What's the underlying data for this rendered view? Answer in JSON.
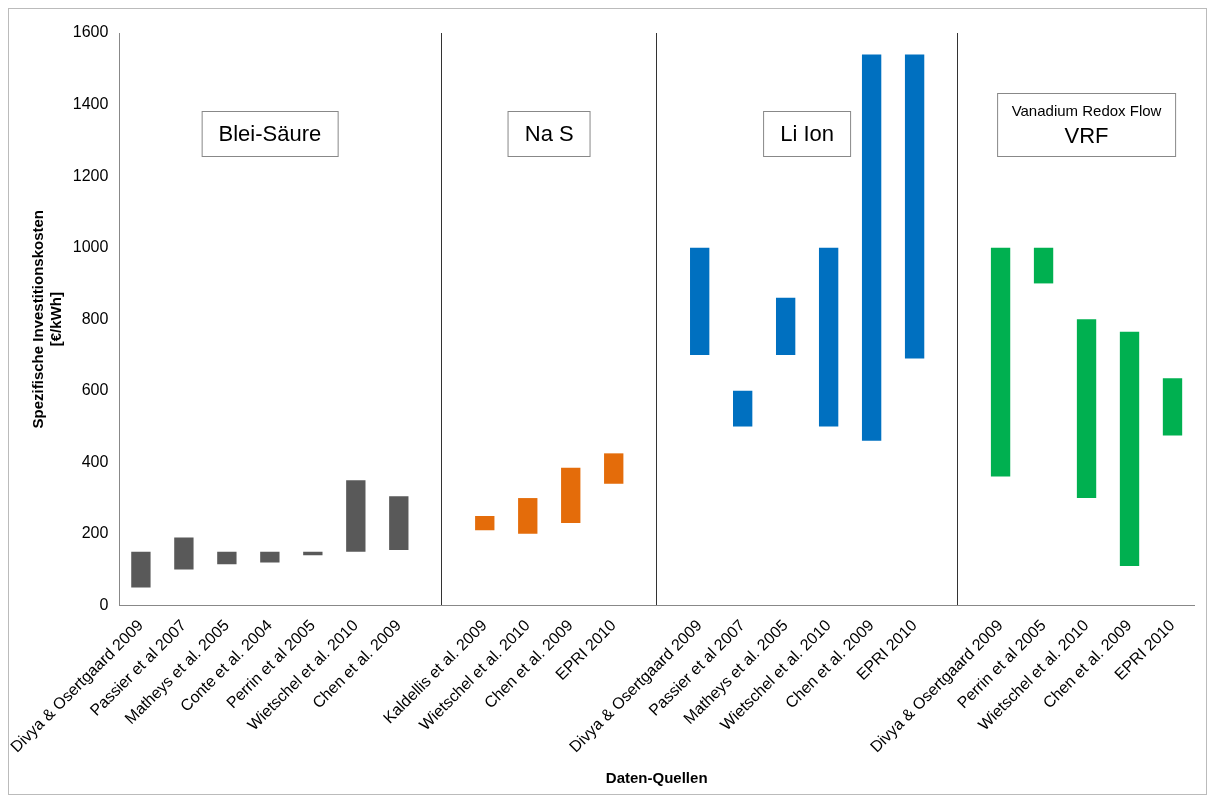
{
  "chart_data": {
    "type": "bar",
    "xlabel": "Daten-Quellen",
    "ylabel": "Spezifische Investitionskosten\n[€/kWh]",
    "categories": [
      "Divya & Osertgaard 2009",
      "Passier et al 2007",
      "Matheys et al. 2005",
      "Conte et al. 2004",
      "Perrin et al 2005",
      "Wietschel et al. 2010",
      "Chen et al. 2009",
      null,
      "Kaldellis et al. 2009",
      "Wietschel et al. 2010",
      "Chen et al. 2009",
      "EPRI 2010",
      null,
      "Divya & Osertgaard 2009",
      "Passier et al 2007",
      "Matheys et al. 2005",
      "Wietschel et al. 2010",
      "Chen et al. 2009",
      "EPRI 2010",
      null,
      "Divya & Osertgaard 2009",
      "Perrin et al 2005",
      "Wietschel et al. 2010",
      "Chen et al. 2009",
      "EPRI 2010"
    ],
    "base": [
      50,
      100,
      115,
      120,
      140,
      150,
      155,
      null,
      210,
      200,
      230,
      340,
      null,
      700,
      500,
      700,
      500,
      460,
      690,
      null,
      360,
      900,
      300,
      110,
      475
    ],
    "values": [
      100,
      90,
      35,
      30,
      10,
      200,
      150,
      null,
      40,
      100,
      155,
      85,
      null,
      300,
      100,
      160,
      500,
      1080,
      850,
      null,
      640,
      100,
      500,
      655,
      160
    ],
    "colors": [
      "#595959",
      "#595959",
      "#595959",
      "#595959",
      "#595959",
      "#595959",
      "#595959",
      null,
      "#e46c0a",
      "#e46c0a",
      "#e46c0a",
      "#e46c0a",
      null,
      "#0070c0",
      "#0070c0",
      "#0070c0",
      "#0070c0",
      "#0070c0",
      "#0070c0",
      null,
      "#00b050",
      "#00b050",
      "#00b050",
      "#00b050",
      "#00b050"
    ],
    "ylim": [
      0,
      1600
    ],
    "yticks": [
      0,
      200,
      400,
      600,
      800,
      1000,
      1200,
      1400,
      1600
    ],
    "grid": false,
    "legend": false,
    "annotations": [
      "Blei-Säure",
      "Na S",
      "Li Ion",
      "Vanadium Redox Flow\nVRF"
    ]
  }
}
